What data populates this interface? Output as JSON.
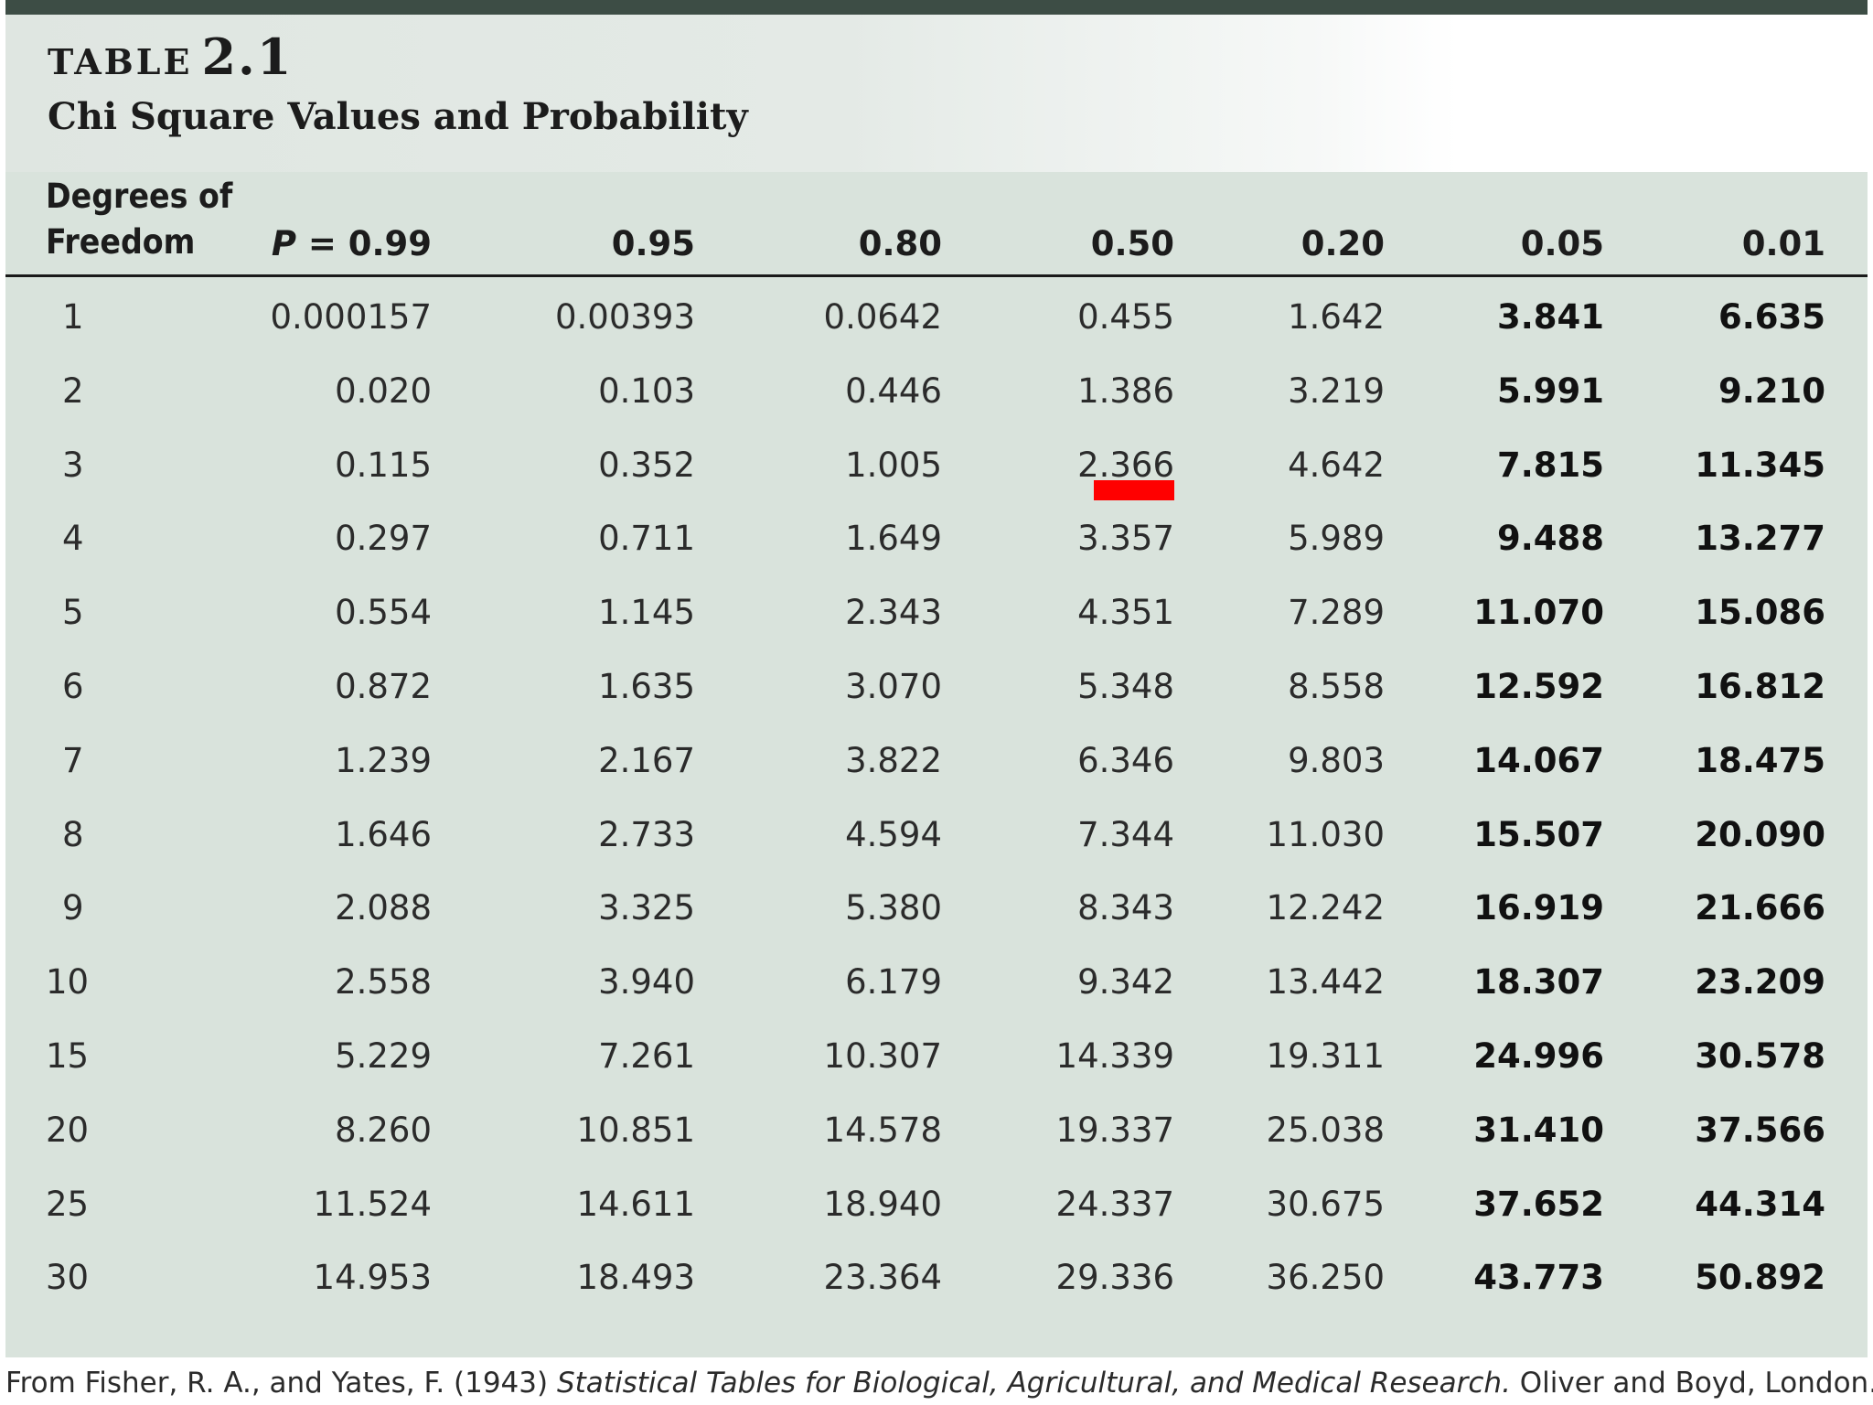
{
  "table": {
    "label": "TABLE",
    "number": "2.1",
    "title": "Chi Square Values and Probability",
    "dof_header_line1": "Degrees of",
    "dof_header_line2": "Freedom",
    "p_prefix": "P",
    "p_equals": " = ",
    "columns": [
      "0.99",
      "0.95",
      "0.80",
      "0.50",
      "0.20",
      "0.05",
      "0.01"
    ],
    "rows": [
      {
        "df": "1",
        "values": [
          "0.000157",
          "0.00393",
          "0.0642",
          "0.455",
          "1.642",
          "3.841",
          "6.635"
        ]
      },
      {
        "df": "2",
        "values": [
          "0.020",
          "0.103",
          "0.446",
          "1.386",
          "3.219",
          "5.991",
          "9.210"
        ]
      },
      {
        "df": "3",
        "values": [
          "0.115",
          "0.352",
          "1.005",
          "2.366",
          "4.642",
          "7.815",
          "11.345"
        ]
      },
      {
        "df": "4",
        "values": [
          "0.297",
          "0.711",
          "1.649",
          "3.357",
          "5.989",
          "9.488",
          "13.277"
        ]
      },
      {
        "df": "5",
        "values": [
          "0.554",
          "1.145",
          "2.343",
          "4.351",
          "7.289",
          "11.070",
          "15.086"
        ]
      },
      {
        "df": "6",
        "values": [
          "0.872",
          "1.635",
          "3.070",
          "5.348",
          "8.558",
          "12.592",
          "16.812"
        ]
      },
      {
        "df": "7",
        "values": [
          "1.239",
          "2.167",
          "3.822",
          "6.346",
          "9.803",
          "14.067",
          "18.475"
        ]
      },
      {
        "df": "8",
        "values": [
          "1.646",
          "2.733",
          "4.594",
          "7.344",
          "11.030",
          "15.507",
          "20.090"
        ]
      },
      {
        "df": "9",
        "values": [
          "2.088",
          "3.325",
          "5.380",
          "8.343",
          "12.242",
          "16.919",
          "21.666"
        ]
      },
      {
        "df": "10",
        "values": [
          "2.558",
          "3.940",
          "6.179",
          "9.342",
          "13.442",
          "18.307",
          "23.209"
        ]
      },
      {
        "df": "15",
        "values": [
          "5.229",
          "7.261",
          "10.307",
          "14.339",
          "19.311",
          "24.996",
          "30.578"
        ]
      },
      {
        "df": "20",
        "values": [
          "8.260",
          "10.851",
          "14.578",
          "19.337",
          "25.038",
          "31.410",
          "37.566"
        ]
      },
      {
        "df": "25",
        "values": [
          "11.524",
          "14.611",
          "18.940",
          "24.337",
          "30.675",
          "37.652",
          "44.314"
        ]
      },
      {
        "df": "30",
        "values": [
          "14.953",
          "18.493",
          "23.364",
          "29.336",
          "36.250",
          "43.773",
          "50.892"
        ]
      }
    ],
    "bold_columns": [
      "0.05",
      "0.01"
    ],
    "highlight": {
      "df": "3",
      "column": "0.50",
      "color": "#ff0000"
    }
  },
  "source": {
    "prefix": "From Fisher, R. A., and Yates, F. (1943) ",
    "book": "Statistical Tables for Biological, Agricultural, and Medical Research.",
    "suffix": " Oliver and Boyd, London."
  },
  "colors": {
    "header_bar": "#3d4d45",
    "panel": "#d9e3dc"
  }
}
